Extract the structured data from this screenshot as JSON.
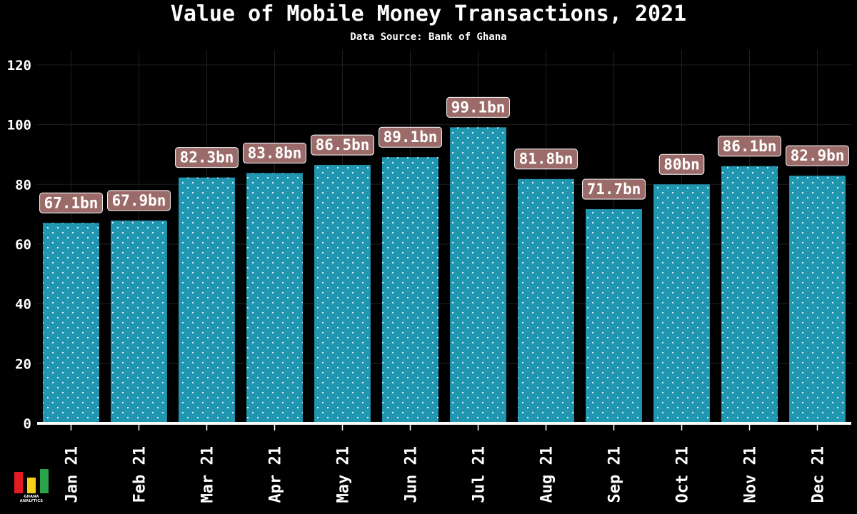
{
  "header": {
    "title": "Value of Mobile Money Transactions, 2021",
    "subtitle": "Data Source: Bank of Ghana"
  },
  "logo": {
    "text": "GHANA ANALYTICS",
    "colors": [
      "#e31b23",
      "#f7d117",
      "#2aa34a"
    ]
  },
  "chart_data": {
    "type": "bar",
    "title": "Value of Mobile Money Transactions, 2021",
    "subtitle": "Data Source: Bank of Ghana",
    "xlabel": "",
    "ylabel": "",
    "categories": [
      "Jan 21",
      "Feb 21",
      "Mar 21",
      "Apr 21",
      "May 21",
      "Jun 21",
      "Jul 21",
      "Aug 21",
      "Sep 21",
      "Oct 21",
      "Nov 21",
      "Dec 21"
    ],
    "values": [
      67.1,
      67.9,
      82.3,
      83.8,
      86.5,
      89.1,
      99.1,
      81.8,
      71.7,
      80,
      86.1,
      82.9
    ],
    "data_labels": [
      "67.1bn",
      "67.9bn",
      "82.3bn",
      "83.8bn",
      "86.5bn",
      "89.1bn",
      "99.1bn",
      "81.8bn",
      "71.7bn",
      "80bn",
      "86.1bn",
      "82.9bn"
    ],
    "ylim": [
      0,
      125
    ],
    "yticks": [
      0,
      20,
      40,
      60,
      80,
      100,
      120
    ],
    "grid": true,
    "legend": "none",
    "colors": {
      "background": "#000000",
      "bar": "#2196b0",
      "bar_dots": "#ffffff",
      "label_box": "#9b6b69",
      "label_text": "#ffffff",
      "grid": "#1f1f1f",
      "axis": "#ffffff"
    }
  }
}
